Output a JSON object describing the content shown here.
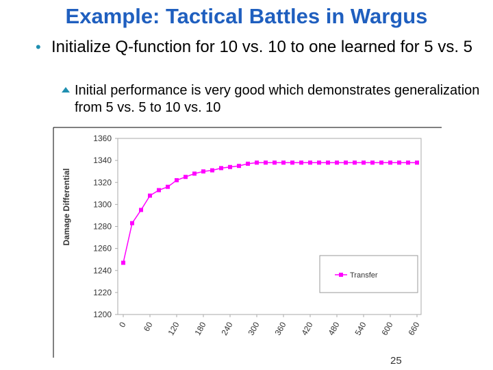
{
  "title": "Example: Tactical Battles in Wargus",
  "bullets": [
    {
      "text": "Initialize Q-function for 10 vs. 10 to one learned for 5 vs. 5",
      "sub": [
        "Initial performance is very good which demonstrates generalization from 5 vs. 5 to 10 vs. 10"
      ]
    }
  ],
  "page_number": "25",
  "chart_data": {
    "type": "line",
    "y_label": "Damage Differential",
    "x": [
      0,
      20,
      40,
      60,
      80,
      100,
      120,
      140,
      160,
      180,
      200,
      220,
      240,
      260,
      280,
      300,
      320,
      340,
      360,
      380,
      400,
      420,
      440,
      460,
      480,
      500,
      520,
      540,
      560,
      580,
      600,
      620,
      640,
      660
    ],
    "series": [
      {
        "name": "Transfer",
        "color": "#ff00ff",
        "values": [
          1247,
          1283,
          1295,
          1308,
          1313,
          1316,
          1322,
          1325,
          1328,
          1330,
          1331,
          1333,
          1334,
          1335,
          1337,
          1338,
          1338,
          1338,
          1338,
          1338,
          1338,
          1338,
          1338,
          1338,
          1338,
          1338,
          1338,
          1338,
          1338,
          1338,
          1338,
          1338,
          1338,
          1338
        ]
      }
    ],
    "xlim": [
      0,
      660
    ],
    "xticks": [
      0,
      60,
      120,
      180,
      240,
      300,
      360,
      420,
      480,
      540,
      600,
      660
    ],
    "ylim": [
      1200,
      1360
    ],
    "yticks": [
      1200,
      1220,
      1240,
      1260,
      1280,
      1300,
      1320,
      1340,
      1360
    ],
    "grid": false,
    "legend": "lower right"
  }
}
